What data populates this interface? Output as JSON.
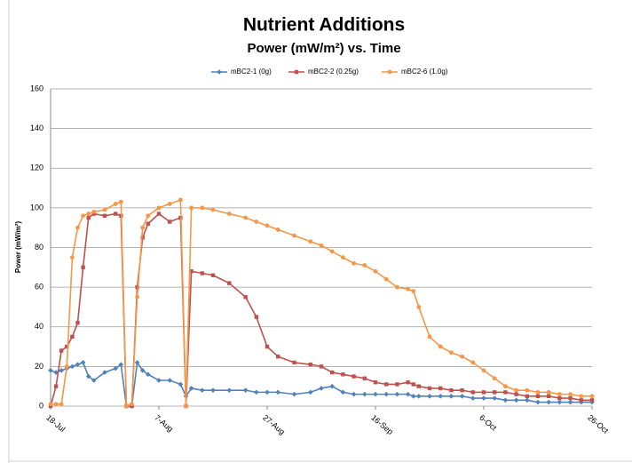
{
  "chart_data": {
    "type": "line",
    "title": "Nutrient Additions",
    "subtitle": "Power (mW/m²) vs. Time",
    "y_label": "Power (mW/m²)",
    "x": [
      "18-Jul",
      "19-Jul",
      "20-Jul",
      "21-Jul",
      "22-Jul",
      "23-Jul",
      "24-Jul",
      "25-Jul",
      "26-Jul",
      "28-Jul",
      "30-Jul",
      "31-Jul",
      "1-Aug",
      "2-Aug",
      "3-Aug",
      "4-Aug",
      "5-Aug",
      "7-Aug",
      "9-Aug",
      "11-Aug",
      "12-Aug",
      "13-Aug",
      "15-Aug",
      "17-Aug",
      "20-Aug",
      "23-Aug",
      "25-Aug",
      "27-Aug",
      "29-Aug",
      "1-Sep",
      "4-Sep",
      "6-Sep",
      "8-Sep",
      "10-Sep",
      "12-Sep",
      "14-Sep",
      "16-Sep",
      "18-Sep",
      "20-Sep",
      "22-Sep",
      "23-Sep",
      "24-Sep",
      "26-Sep",
      "28-Sep",
      "30-Sep",
      "2-Oct",
      "4-Oct",
      "6-Oct",
      "8-Oct",
      "10-Oct",
      "12-Oct",
      "14-Oct",
      "16-Oct",
      "18-Oct",
      "20-Oct",
      "22-Oct",
      "24-Oct",
      "26-Oct"
    ],
    "series": [
      {
        "name": "mBC2-1 (0g)",
        "color": "#4f81bd",
        "marker": "diamond",
        "values": [
          18,
          17,
          18,
          19,
          20,
          21,
          22,
          15,
          13,
          17,
          19,
          21,
          0,
          0,
          22,
          18,
          16,
          13,
          13,
          11,
          5,
          9,
          8,
          8,
          8,
          8,
          7,
          7,
          7,
          6,
          7,
          9,
          10,
          7,
          6,
          6,
          6,
          6,
          6,
          6,
          5,
          5,
          5,
          5,
          5,
          5,
          4,
          4,
          4,
          3,
          3,
          3,
          2,
          2,
          2,
          2,
          2,
          2
        ]
      },
      {
        "name": "mBC2-2 (0.25g)",
        "color": "#c0504d",
        "marker": "square",
        "values": [
          0,
          10,
          28,
          30,
          35,
          42,
          70,
          95,
          97,
          96,
          97,
          96,
          0,
          0,
          60,
          85,
          92,
          97,
          93,
          95,
          0,
          68,
          67,
          66,
          62,
          55,
          45,
          30,
          25,
          22,
          21,
          20,
          17,
          16,
          15,
          14,
          12,
          11,
          11,
          12,
          11,
          10,
          9,
          9,
          8,
          8,
          7,
          7,
          7,
          7,
          6,
          5,
          5,
          5,
          4,
          4,
          3,
          3
        ]
      },
      {
        "name": "mBC2-6 (1.0g)",
        "color": "#f79646",
        "marker": "circle",
        "values": [
          1,
          1,
          1,
          20,
          75,
          90,
          96,
          97,
          98,
          99,
          102,
          103,
          0,
          1,
          55,
          90,
          96,
          100,
          102,
          104,
          0,
          100,
          100,
          99,
          97,
          95,
          93,
          91,
          89,
          86,
          83,
          81,
          78,
          75,
          72,
          71,
          68,
          64,
          60,
          59,
          58,
          50,
          35,
          30,
          27,
          25,
          22,
          18,
          14,
          10,
          8,
          8,
          7,
          7,
          6,
          6,
          5,
          5
        ]
      }
    ],
    "xlim": [
      "18-Jul",
      "26-Oct"
    ],
    "xticks": [
      "18-Jul",
      "7-Aug",
      "27-Aug",
      "16-Sep",
      "6-Oct",
      "26-Oct"
    ],
    "ylim": [
      0,
      160
    ],
    "yticks": [
      0,
      20,
      40,
      60,
      80,
      100,
      120,
      140,
      160
    ],
    "grid": true,
    "legend": "top"
  }
}
